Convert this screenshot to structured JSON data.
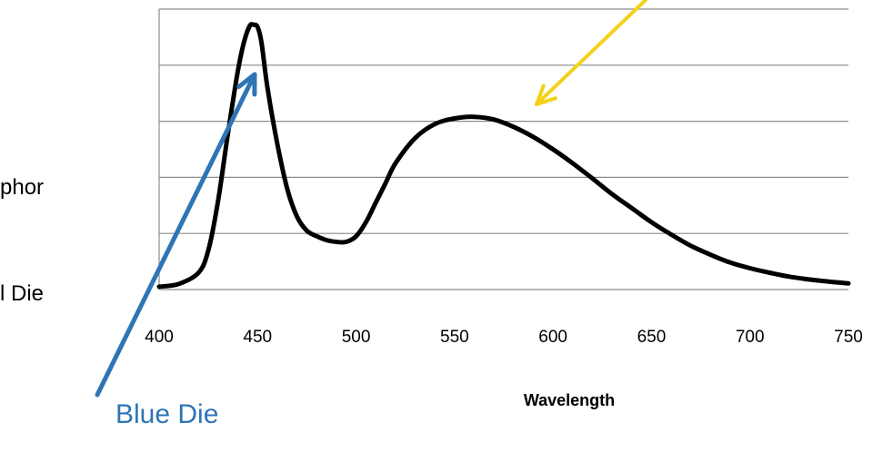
{
  "side_labels": [
    "phor",
    "l Die"
  ],
  "callouts": {
    "blue_die": "Blue Die",
    "blue_color": "#2e75b6",
    "yellow_color": "#f2d21b"
  },
  "chart_data": {
    "type": "line",
    "title": "",
    "xlabel": "Wavelength",
    "ylabel": "",
    "xlim": [
      400,
      750
    ],
    "ylim": [
      0,
      5
    ],
    "xticks": [
      "400",
      "450",
      "500",
      "550",
      "600",
      "650",
      "700",
      "750"
    ],
    "grid": true,
    "line_color": "#000000",
    "series": [
      {
        "x": [
          400,
          410,
          420,
          425,
          430,
          435,
          440,
          443,
          446,
          448,
          450,
          452,
          455,
          460,
          465,
          470,
          475,
          480,
          485,
          490,
          495,
          500,
          505,
          510,
          515,
          520,
          530,
          540,
          550,
          560,
          570,
          580,
          590,
          600,
          610,
          620,
          630,
          640,
          650,
          660,
          670,
          680,
          690,
          700,
          710,
          720,
          730,
          740,
          750
        ],
        "values": [
          0.05,
          0.1,
          0.3,
          0.7,
          1.6,
          2.8,
          3.9,
          4.4,
          4.7,
          4.72,
          4.68,
          4.4,
          3.6,
          2.6,
          1.8,
          1.3,
          1.05,
          0.95,
          0.88,
          0.85,
          0.85,
          0.95,
          1.2,
          1.55,
          1.9,
          2.25,
          2.7,
          2.95,
          3.05,
          3.08,
          3.03,
          2.9,
          2.72,
          2.5,
          2.25,
          1.98,
          1.7,
          1.45,
          1.2,
          0.98,
          0.78,
          0.62,
          0.48,
          0.38,
          0.3,
          0.23,
          0.18,
          0.14,
          0.11
        ]
      }
    ]
  }
}
